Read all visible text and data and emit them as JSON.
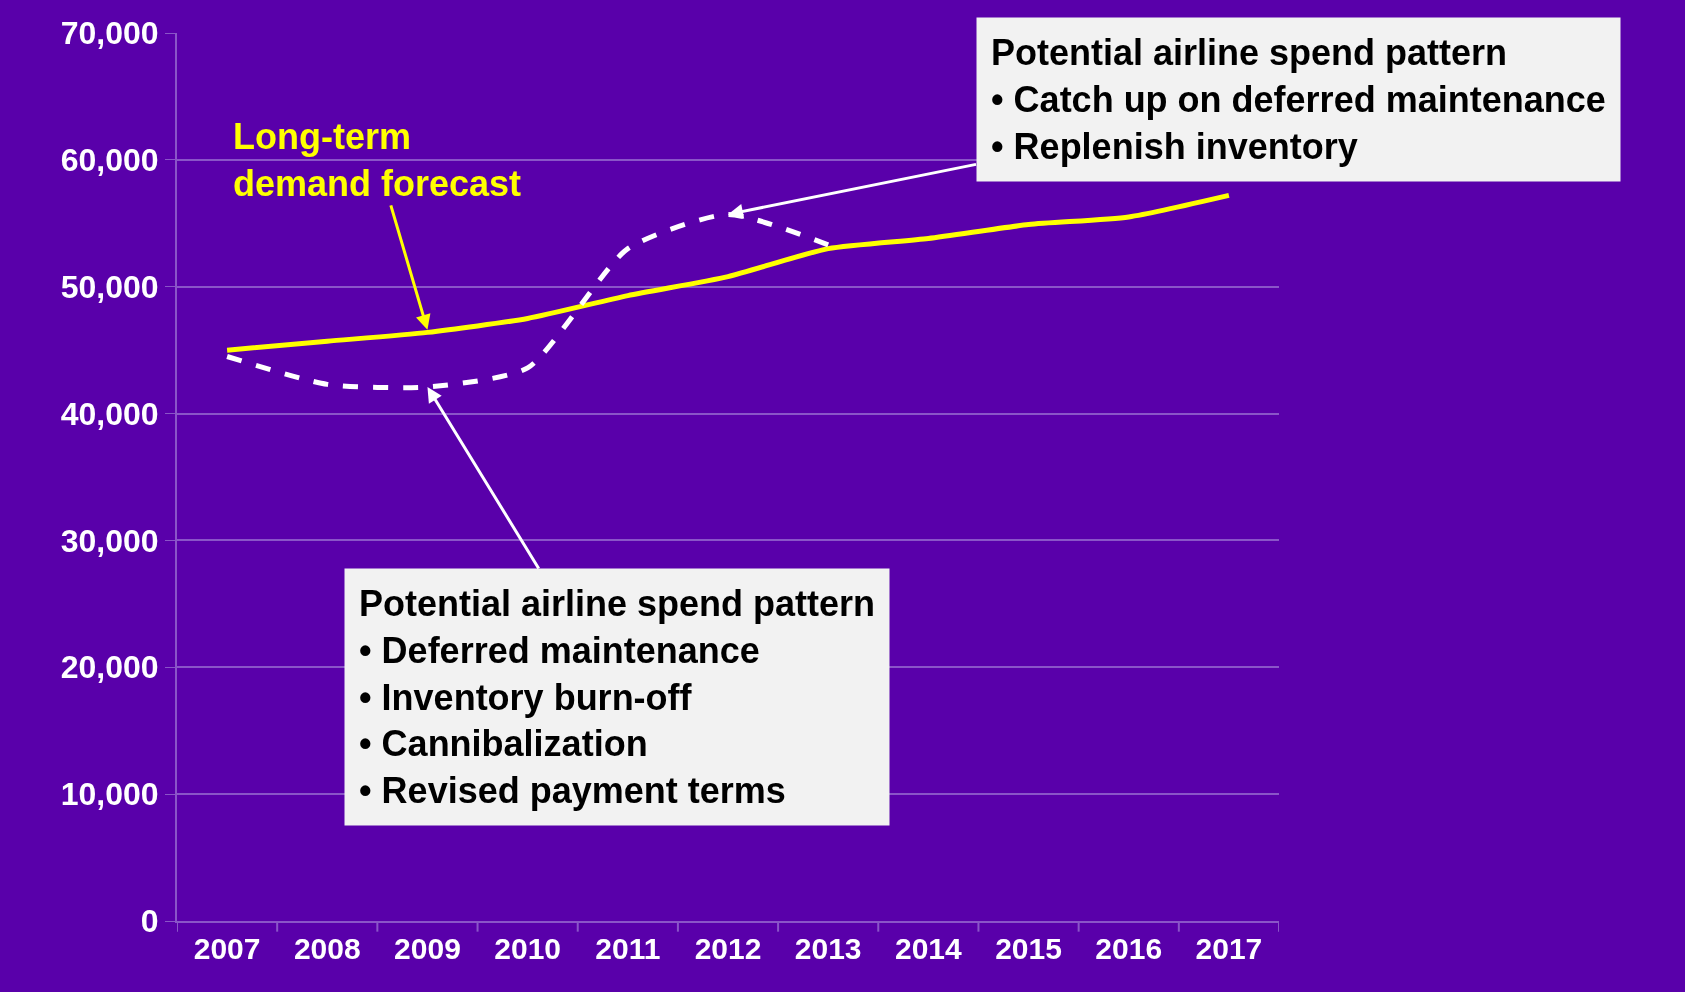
{
  "chart_data": {
    "type": "line",
    "categories": [
      "2007",
      "2008",
      "2009",
      "2010",
      "2011",
      "2012",
      "2013",
      "2014",
      "2015",
      "2016",
      "2017"
    ],
    "series": [
      {
        "color": "#ffff00",
        "line_style": "solid",
        "values": [
          45000,
          45700,
          46400,
          47500,
          49300,
          50800,
          53000,
          53800,
          54900,
          55500,
          57200
        ]
      },
      {
        "color": "#ffffff",
        "line_style": "dashed",
        "values": [
          44500,
          42300,
          42100,
          43600,
          53000,
          55700,
          53300,
          null,
          null,
          null,
          null
        ]
      }
    ],
    "ylim": [
      0,
      70000
    ],
    "yticks": [
      {
        "value": 0,
        "label": "0"
      },
      {
        "value": 10000,
        "label": "10,000"
      },
      {
        "value": 20000,
        "label": "20,000"
      },
      {
        "value": 30000,
        "label": "30,000"
      },
      {
        "value": 40000,
        "label": "40,000"
      },
      {
        "value": 50000,
        "label": "50,000"
      },
      {
        "value": 60000,
        "label": "60,000"
      },
      {
        "value": 70000,
        "label": "70,000"
      }
    ],
    "grid": "y",
    "marker": "none",
    "annotations": [
      {
        "text": "Long-term\ndemand forecast",
        "x": "2009",
        "y": 46600
      },
      {
        "text": "Potential airline spend pattern\n• Deferred maintenance\n• Inventory burn-off\n• Cannibalization\n• Revised payment terms",
        "x": "2009",
        "y": 42100
      },
      {
        "text": "Potential airline spend pattern\n• Catch up on deferred maintenance\n• Replenish inventory",
        "x": "2012",
        "y": 55700
      }
    ]
  }
}
